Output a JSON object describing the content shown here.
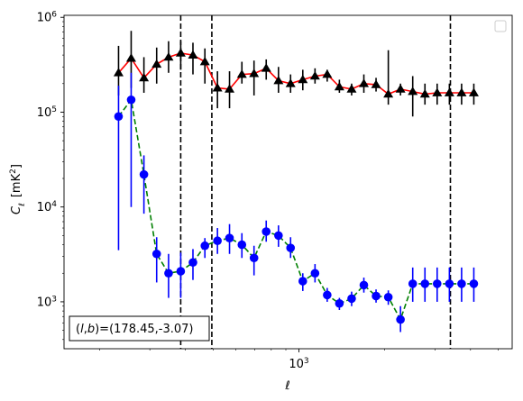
{
  "chart_data": {
    "type": "line",
    "title": "",
    "xlabel": "ℓ",
    "ylabel_main": "C",
    "ylabel_sub": "ℓ",
    "ylabel_unit": "[mK",
    "ylabel_unit_sup": "2",
    "ylabel_unit_close": "]",
    "xscale": "log",
    "yscale": "log",
    "xlim": [
      150,
      5600
    ],
    "ylim": [
      320,
      1050000
    ],
    "grid": false,
    "legend": "top-right, empty box",
    "x_ticks": [
      {
        "value": 1000,
        "base": "10",
        "exp": "3"
      }
    ],
    "y_ticks": [
      {
        "value": 1000,
        "base": "10",
        "exp": "3"
      },
      {
        "value": 10000,
        "base": "10",
        "exp": "4"
      },
      {
        "value": 100000,
        "base": "10",
        "exp": "5"
      },
      {
        "value": 1000000,
        "base": "10",
        "exp": "6"
      }
    ],
    "vlines": [
      385,
      495,
      3400
    ],
    "annotation": {
      "prefix": "(",
      "l": "l",
      "comma": ",",
      "b": "b",
      "suffix": ")=(178.45,-3.07)"
    },
    "colors": {
      "black_series_line": "#ff0000",
      "black_series_marker": "#000000",
      "blue_series_line": "#008000",
      "blue_series_marker": "#0000ff",
      "vlines": "#000000"
    },
    "series": [
      {
        "marker": "triangle",
        "line_style": "solid",
        "x": [
          233,
          258,
          286,
          317,
          349,
          385,
          425,
          468,
          518,
          571,
          631,
          696,
          768,
          848,
          935,
          1032,
          1139,
          1257,
          1387,
          1531,
          1690,
          1865,
          2059,
          2272,
          2508,
          2768,
          3055,
          3372,
          3722,
          4108
        ],
        "y": [
          260000,
          370000,
          230000,
          320000,
          380000,
          420000,
          400000,
          340000,
          180000,
          175000,
          250000,
          255000,
          290000,
          215000,
          200000,
          220000,
          240000,
          250000,
          185000,
          175000,
          200000,
          195000,
          155000,
          175000,
          165000,
          155000,
          160000,
          160000,
          160000,
          160000
        ],
        "y_low": [
          150000,
          180000,
          160000,
          200000,
          260000,
          280000,
          250000,
          200000,
          110000,
          110000,
          200000,
          150000,
          220000,
          160000,
          160000,
          170000,
          200000,
          210000,
          160000,
          150000,
          160000,
          165000,
          120000,
          150000,
          90000,
          120000,
          120000,
          120000,
          120000,
          120000
        ],
        "y_high": [
          500000,
          720000,
          380000,
          480000,
          560000,
          560000,
          540000,
          470000,
          270000,
          270000,
          340000,
          350000,
          360000,
          300000,
          250000,
          280000,
          290000,
          280000,
          220000,
          200000,
          250000,
          230000,
          450000,
          200000,
          240000,
          200000,
          200000,
          200000,
          200000,
          200000
        ]
      },
      {
        "marker": "circle",
        "line_style": "dashed",
        "x": [
          233,
          258,
          286,
          317,
          349,
          385,
          425,
          468,
          518,
          571,
          631,
          696,
          768,
          848,
          935,
          1032,
          1139,
          1257,
          1387,
          1531,
          1690,
          1865,
          2059,
          2272,
          2508,
          2768,
          3055,
          3372,
          3722,
          4108
        ],
        "y": [
          90000,
          135000,
          22000,
          3200,
          2000,
          2100,
          2600,
          3900,
          4400,
          4700,
          4000,
          2900,
          5500,
          5000,
          3700,
          1650,
          2000,
          1180,
          960,
          1080,
          1500,
          1150,
          1120,
          650,
          1550,
          1550,
          1550,
          1550,
          1550,
          1550
        ],
        "y_low": [
          3500,
          10000,
          8500,
          1600,
          1100,
          1100,
          1700,
          2900,
          3200,
          3200,
          2900,
          1900,
          4300,
          3800,
          2900,
          1300,
          1600,
          1000,
          820,
          900,
          1250,
          980,
          930,
          480,
          1000,
          1000,
          1000,
          1000,
          1000,
          1000
        ],
        "y_high": [
          190000,
          260000,
          35000,
          4800,
          3200,
          3300,
          3600,
          4700,
          6000,
          6600,
          5300,
          3900,
          7200,
          6400,
          4800,
          2000,
          2500,
          1400,
          1100,
          1280,
          1800,
          1350,
          1320,
          900,
          2300,
          2300,
          2300,
          2300,
          2300,
          2300
        ]
      }
    ]
  }
}
